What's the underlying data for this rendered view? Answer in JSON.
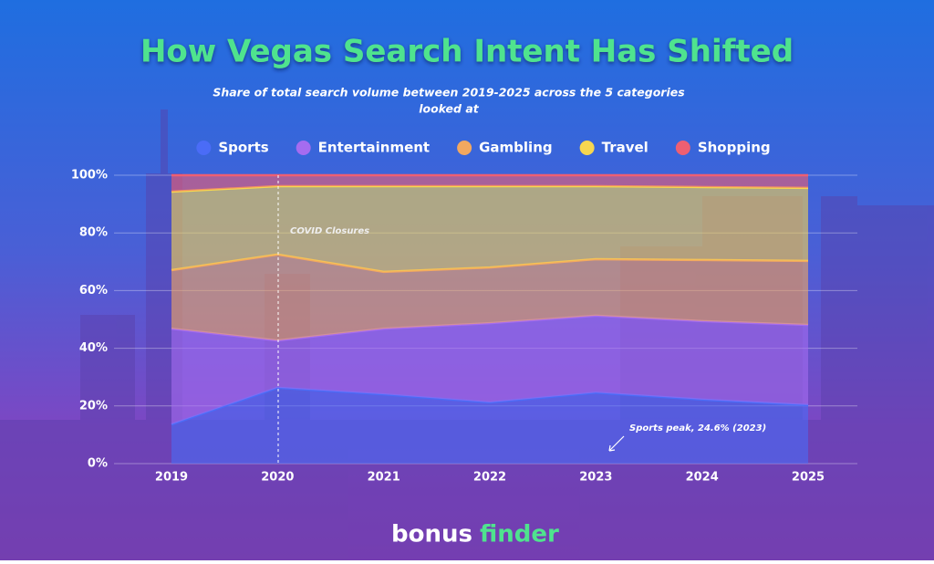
{
  "chart_data": {
    "type": "stacked_area",
    "title": "How Vegas Search Intent Has Shifted",
    "subtitle": [
      "Share of total search volume between 2019-2025 across the 5 categories",
      "looked at"
    ],
    "categories": [
      "2019",
      "2020",
      "2021",
      "2022",
      "2023",
      "2024",
      "2025"
    ],
    "series": [
      {
        "name": "Sports",
        "color": "#4a6cf7",
        "values": [
          13.6,
          26.3,
          24.0,
          21.2,
          24.6,
          22.2,
          20.3
        ]
      },
      {
        "name": "Entertainment",
        "color": "#a56cf0",
        "values": [
          33.2,
          16.4,
          22.8,
          27.5,
          26.7,
          27.2,
          27.8
        ]
      },
      {
        "name": "Gambling",
        "color": "#f2a860",
        "values": [
          20.3,
          29.8,
          19.7,
          19.3,
          19.6,
          21.2,
          22.2
        ]
      },
      {
        "name": "Travel",
        "color": "#f6d650",
        "values": [
          27.2,
          23.7,
          29.7,
          28.2,
          25.3,
          25.3,
          25.3
        ]
      },
      {
        "name": "Shopping",
        "color": "#ee5f72",
        "values": [
          5.7,
          3.8,
          3.8,
          3.8,
          3.8,
          4.1,
          4.4
        ]
      }
    ],
    "ylim": [
      0,
      100
    ],
    "yticks": [
      {
        "value": 0,
        "label": "0%"
      },
      {
        "value": 20,
        "label": "20%"
      },
      {
        "value": 40,
        "label": "40%"
      },
      {
        "value": 60,
        "label": "60%"
      },
      {
        "value": 80,
        "label": "80%"
      },
      {
        "value": 100,
        "label": "100%"
      }
    ],
    "grid": true,
    "annotations": [
      "COVID Closures",
      "Sports peak, 24.6% (2023)"
    ]
  },
  "footer": {
    "logo_left": "bonus",
    "logo_right": "finder"
  }
}
